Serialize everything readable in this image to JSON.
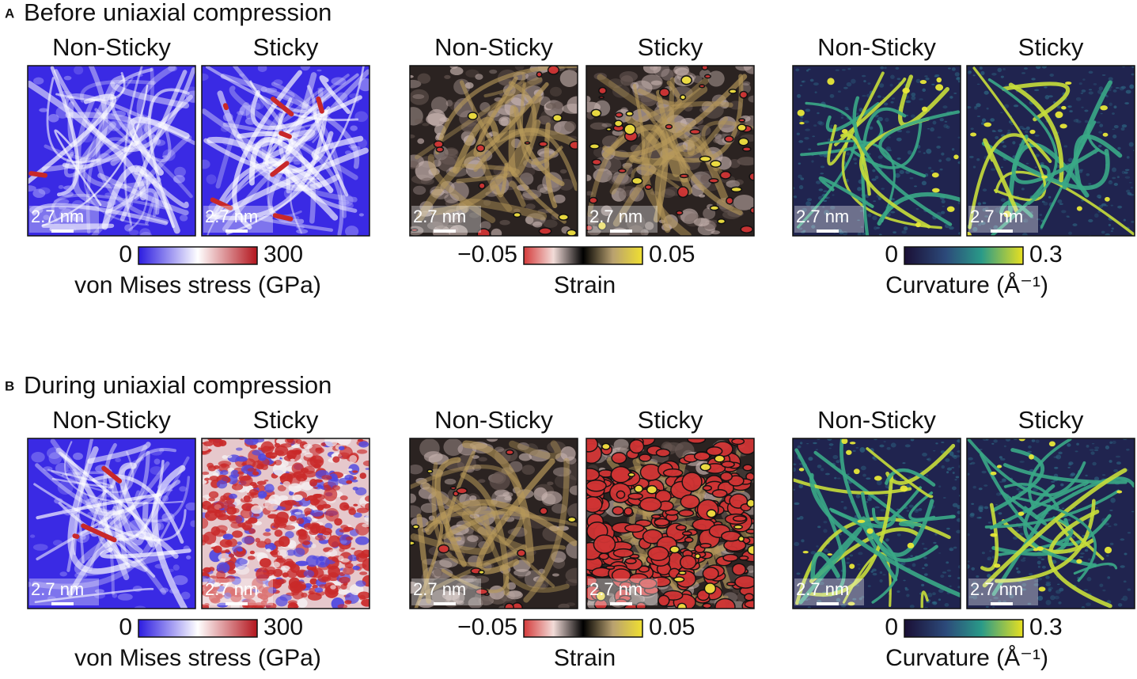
{
  "figure": {
    "rows": [
      {
        "label": "A",
        "title": "Before uniaxial compression",
        "groups": [
          {
            "panels": [
              {
                "title": "Non-Sticky",
                "scale_bar": "2.7 nm"
              },
              {
                "title": "Sticky",
                "scale_bar": "2.7 nm"
              }
            ],
            "colorbar": {
              "min_label": "0",
              "max_label": "300",
              "caption": "von Mises stress (GPa)"
            }
          },
          {
            "panels": [
              {
                "title": "Non-Sticky",
                "scale_bar": "2.7 nm"
              },
              {
                "title": "Sticky",
                "scale_bar": "2.7 nm"
              }
            ],
            "colorbar": {
              "min_label": "−0.05",
              "max_label": "0.05",
              "caption": "Strain"
            }
          },
          {
            "panels": [
              {
                "title": "Non-Sticky",
                "scale_bar": "2.7 nm"
              },
              {
                "title": "Sticky",
                "scale_bar": "2.7 nm"
              }
            ],
            "colorbar": {
              "min_label": "0",
              "max_label": "0.3",
              "caption": "Curvature (Å⁻¹)"
            }
          }
        ]
      },
      {
        "label": "B",
        "title": "During uniaxial compression",
        "groups": [
          {
            "panels": [
              {
                "title": "Non-Sticky",
                "scale_bar": "2.7 nm"
              },
              {
                "title": "Sticky",
                "scale_bar": "2.7 nm"
              }
            ],
            "colorbar": {
              "min_label": "0",
              "max_label": "300",
              "caption": "von Mises stress (GPa)"
            }
          },
          {
            "panels": [
              {
                "title": "Non-Sticky",
                "scale_bar": "2.7 nm"
              },
              {
                "title": "Sticky",
                "scale_bar": "2.7 nm"
              }
            ],
            "colorbar": {
              "min_label": "−0.05",
              "max_label": "0.05",
              "caption": "Strain"
            }
          },
          {
            "panels": [
              {
                "title": "Non-Sticky",
                "scale_bar": "2.7 nm"
              },
              {
                "title": "Sticky",
                "scale_bar": "2.7 nm"
              }
            ],
            "colorbar": {
              "min_label": "0",
              "max_label": "0.3",
              "caption": "Curvature (Å⁻¹)"
            }
          }
        ]
      }
    ]
  }
}
